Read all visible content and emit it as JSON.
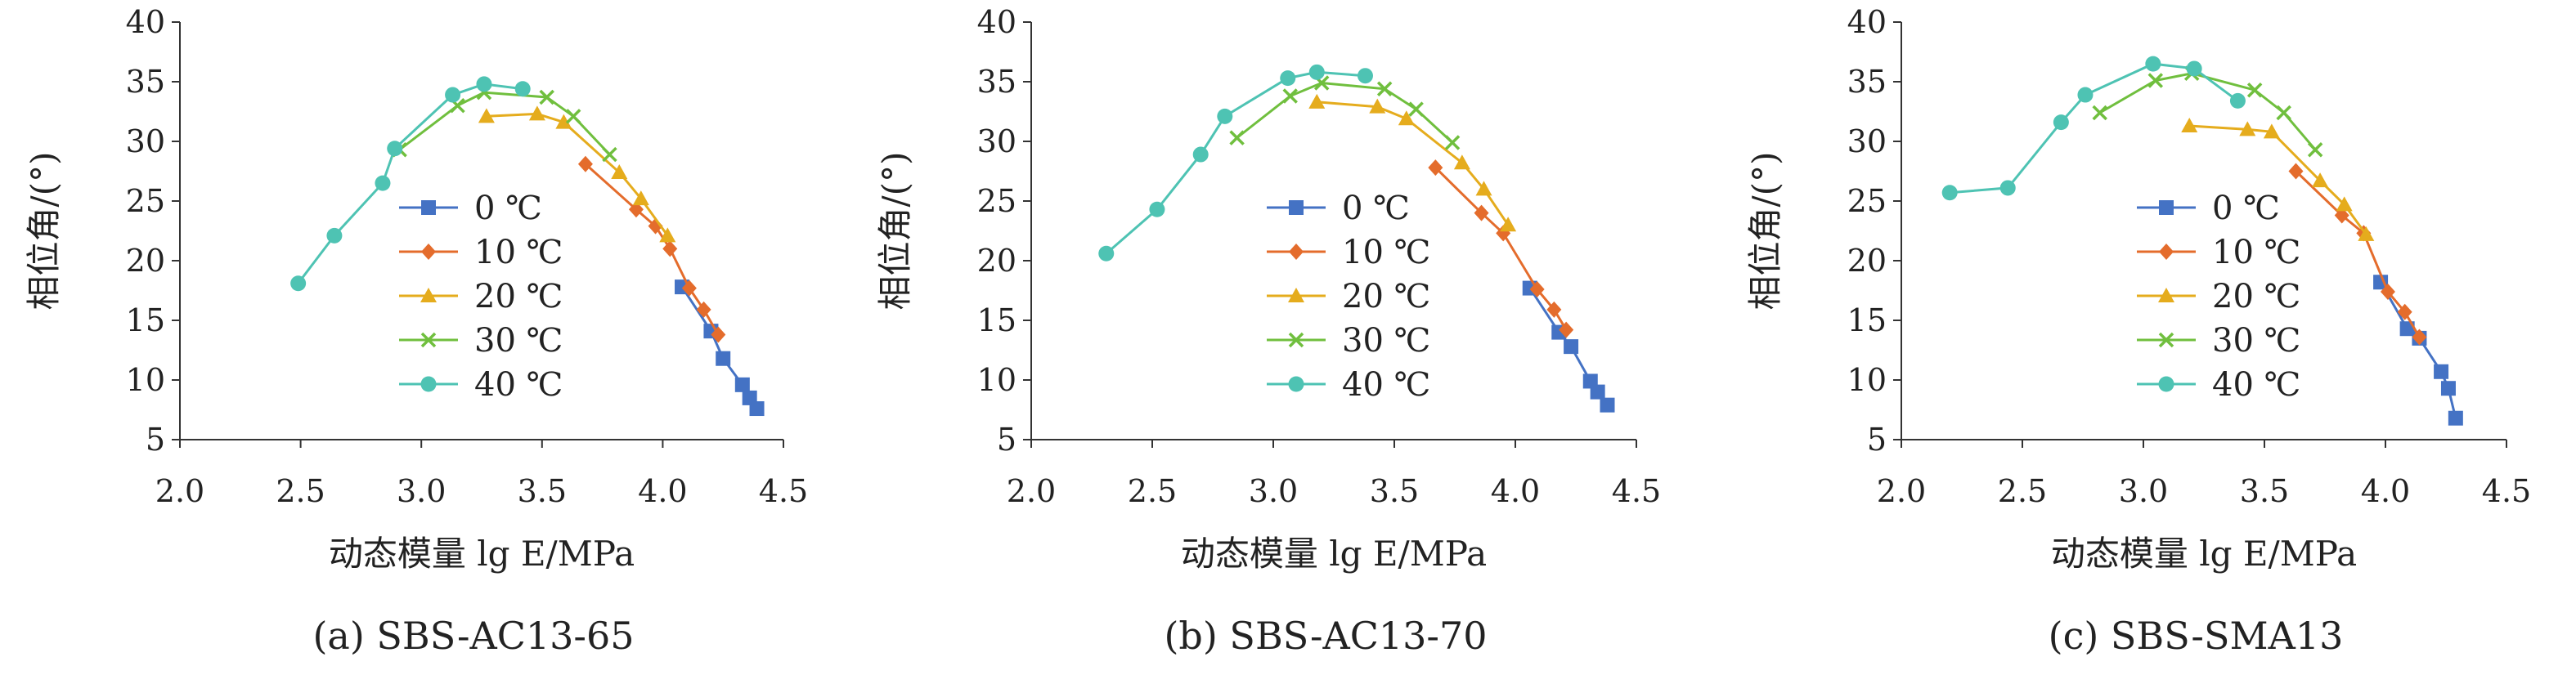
{
  "chart_data": [
    {
      "type": "line",
      "caption": "(a) SBS-AC13-65",
      "xlabel": "动态模量 lg E/MPa",
      "ylabel": "相位角/(°)",
      "xlim": [
        2.0,
        4.5
      ],
      "ylim": [
        5,
        40
      ],
      "xticks": [
        "2.0",
        "2.5",
        "3.0",
        "3.5",
        "4.0",
        "4.5"
      ],
      "yticks": [
        "5",
        "10",
        "15",
        "20",
        "25",
        "30",
        "35",
        "40"
      ],
      "legend_position": "left-center",
      "series": [
        {
          "name": "0 ℃",
          "color": "#4472C4",
          "marker": "square",
          "x": [
            4.08,
            4.2,
            4.25,
            4.33,
            4.36,
            4.39
          ],
          "y": [
            17.8,
            14.1,
            11.8,
            9.6,
            8.5,
            7.6
          ]
        },
        {
          "name": "10 ℃",
          "color": "#E46C2C",
          "marker": "diamond",
          "x": [
            3.68,
            3.89,
            3.97,
            4.03,
            4.11,
            4.17,
            4.23
          ],
          "y": [
            28.1,
            24.3,
            22.9,
            21.0,
            17.7,
            15.9,
            13.8
          ]
        },
        {
          "name": "20 ℃",
          "color": "#E5AC1D",
          "marker": "triangle",
          "x": [
            3.27,
            3.48,
            3.59,
            3.82,
            3.91,
            4.02
          ],
          "y": [
            32.1,
            32.3,
            31.6,
            27.4,
            25.2,
            22.1
          ]
        },
        {
          "name": "30 ℃",
          "color": "#70BF3E",
          "marker": "x",
          "x": [
            2.91,
            3.15,
            3.26,
            3.52,
            3.63,
            3.78
          ],
          "y": [
            29.3,
            33.0,
            34.1,
            33.7,
            32.1,
            28.9
          ]
        },
        {
          "name": "40 ℃",
          "color": "#4EC3B3",
          "marker": "circle",
          "x": [
            2.49,
            2.64,
            2.84,
            2.89,
            3.13,
            3.26,
            3.42
          ],
          "y": [
            18.1,
            22.1,
            26.5,
            29.4,
            33.9,
            34.8,
            34.4
          ]
        }
      ]
    },
    {
      "type": "line",
      "caption": "(b) SBS-AC13-70",
      "xlabel": "动态模量 lg E/MPa",
      "ylabel": "相位角/(°)",
      "xlim": [
        2.0,
        4.5
      ],
      "ylim": [
        5,
        40
      ],
      "xticks": [
        "2.0",
        "2.5",
        "3.0",
        "3.5",
        "4.0",
        "4.5"
      ],
      "yticks": [
        "5",
        "10",
        "15",
        "20",
        "25",
        "30",
        "35",
        "40"
      ],
      "legend_position": "center",
      "series": [
        {
          "name": "0 ℃",
          "color": "#4472C4",
          "marker": "square",
          "x": [
            4.06,
            4.18,
            4.23,
            4.31,
            4.34,
            4.38
          ],
          "y": [
            17.7,
            14.0,
            12.8,
            9.9,
            9.0,
            7.9
          ]
        },
        {
          "name": "10 ℃",
          "color": "#E46C2C",
          "marker": "diamond",
          "x": [
            3.67,
            3.86,
            3.95,
            4.09,
            4.16,
            4.21
          ],
          "y": [
            27.8,
            24.0,
            22.3,
            17.6,
            15.9,
            14.2
          ]
        },
        {
          "name": "20 ℃",
          "color": "#E5AC1D",
          "marker": "triangle",
          "x": [
            3.18,
            3.43,
            3.55,
            3.78,
            3.87,
            3.97
          ],
          "y": [
            33.3,
            32.9,
            31.9,
            28.2,
            26.0,
            23.0
          ]
        },
        {
          "name": "30 ℃",
          "color": "#70BF3E",
          "marker": "x",
          "x": [
            2.85,
            3.07,
            3.2,
            3.46,
            3.59,
            3.74
          ],
          "y": [
            30.3,
            33.8,
            34.9,
            34.4,
            32.7,
            29.9
          ]
        },
        {
          "name": "40 ℃",
          "color": "#4EC3B3",
          "marker": "circle",
          "x": [
            2.31,
            2.52,
            2.7,
            2.8,
            3.06,
            3.18,
            3.38
          ],
          "y": [
            20.6,
            24.3,
            28.9,
            32.1,
            35.3,
            35.8,
            35.5
          ]
        }
      ]
    },
    {
      "type": "line",
      "caption": "(c) SBS-SMA13",
      "xlabel": "动态模量 lg E/MPa",
      "ylabel": "相位角/(°)",
      "xlim": [
        2.0,
        4.5
      ],
      "ylim": [
        5,
        40
      ],
      "xticks": [
        "2.0",
        "2.5",
        "3.0",
        "3.5",
        "4.0",
        "4.5"
      ],
      "yticks": [
        "5",
        "10",
        "15",
        "20",
        "25",
        "30",
        "35",
        "40"
      ],
      "legend_position": "center-right",
      "series": [
        {
          "name": "0 ℃",
          "color": "#4472C4",
          "marker": "square",
          "x": [
            3.98,
            4.09,
            4.14,
            4.23,
            4.26,
            4.29
          ],
          "y": [
            18.2,
            14.3,
            13.5,
            10.7,
            9.3,
            6.8
          ]
        },
        {
          "name": "10 ℃",
          "color": "#E46C2C",
          "marker": "diamond",
          "x": [
            3.63,
            3.82,
            3.91,
            4.01,
            4.08,
            4.14
          ],
          "y": [
            27.5,
            23.8,
            22.3,
            17.4,
            15.7,
            13.6
          ]
        },
        {
          "name": "20 ℃",
          "color": "#E5AC1D",
          "marker": "triangle",
          "x": [
            3.19,
            3.43,
            3.53,
            3.73,
            3.83,
            3.92
          ],
          "y": [
            31.3,
            31.0,
            30.8,
            26.7,
            24.7,
            22.2
          ]
        },
        {
          "name": "30 ℃",
          "color": "#70BF3E",
          "marker": "x",
          "x": [
            2.82,
            3.05,
            3.2,
            3.46,
            3.58,
            3.71
          ],
          "y": [
            32.4,
            35.1,
            35.7,
            34.3,
            32.4,
            29.3
          ]
        },
        {
          "name": "40 ℃",
          "color": "#4EC3B3",
          "marker": "circle",
          "x": [
            2.2,
            2.44,
            2.66,
            2.76,
            3.04,
            3.21,
            3.39
          ],
          "y": [
            25.7,
            26.1,
            31.6,
            33.9,
            36.5,
            36.1,
            33.4
          ]
        }
      ]
    }
  ]
}
